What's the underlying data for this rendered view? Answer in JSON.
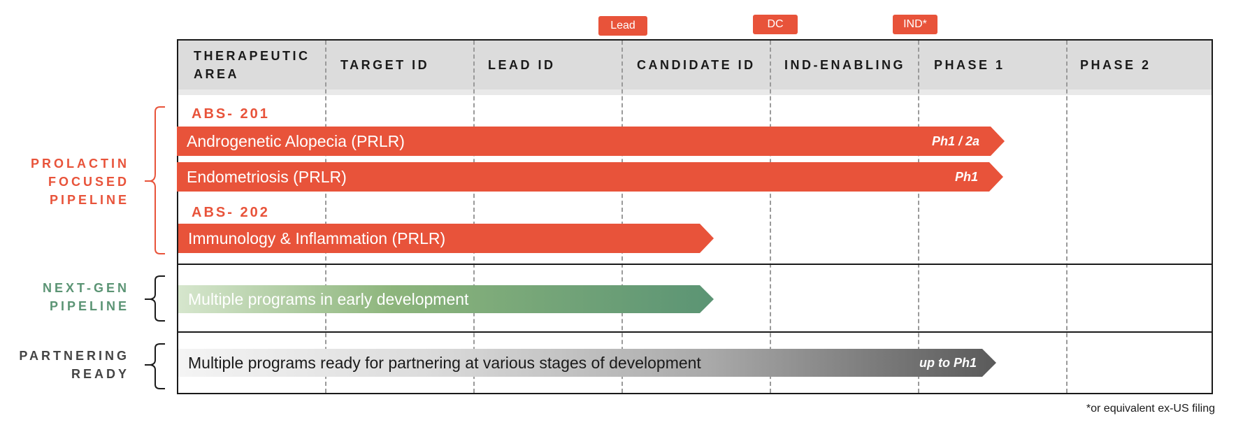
{
  "colors": {
    "accent_red": "#e8533a",
    "next_gen_green": "#5b9474",
    "partnering_gray": "#444444",
    "header_bg": "#dcdcdc"
  },
  "milestones": [
    {
      "label": "Lead"
    },
    {
      "label": "DC"
    },
    {
      "label": "IND*"
    }
  ],
  "header": {
    "therapeutic_area": [
      "THERAPEUTIC",
      "AREA"
    ],
    "stages": [
      "TARGET ID",
      "LEAD ID",
      "CANDIDATE ID",
      "IND-ENABLING",
      "PHASE 1",
      "PHASE 2"
    ]
  },
  "groups": [
    {
      "lines": [
        "PROLACTIN",
        "FOCUSED",
        "PIPELINE"
      ],
      "color": "#e8533a"
    },
    {
      "lines": [
        "NEXT-GEN",
        "PIPELINE"
      ],
      "color": "#5b9474"
    },
    {
      "lines": [
        "PARTNERING",
        "READY"
      ],
      "color": "#444444"
    }
  ],
  "assets": [
    {
      "name": "ABS- 201"
    },
    {
      "name": "ABS- 202"
    }
  ],
  "programs": [
    {
      "label": "Androgenetic Alopecia (PRLR)",
      "tag": "Ph1 / 2a",
      "progress_stage": "Phase 1"
    },
    {
      "label": "Endometriosis (PRLR)",
      "tag": "Ph1",
      "progress_stage": "Phase 1"
    },
    {
      "label": "Immunology & Inflammation (PRLR)",
      "tag": "",
      "progress_stage": "Candidate ID"
    },
    {
      "label": "Multiple programs in early development",
      "tag": "",
      "progress_stage": "Candidate ID"
    },
    {
      "label": "Multiple programs ready for partnering at various stages of development",
      "tag": "up to Ph1",
      "progress_stage": "Phase 1"
    }
  ],
  "footnote": "*or equivalent ex-US filing"
}
